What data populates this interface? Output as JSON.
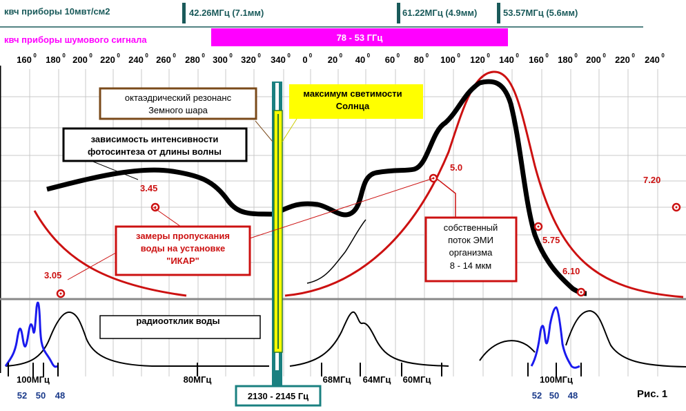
{
  "figure_label": "Рис. 1",
  "header": {
    "kvch_10mw_label": "квч приборы 10мвт/см2",
    "freq_marks": [
      "42.26МГц (7.1мм)",
      "61.22МГц (4.9мм)",
      "53.57МГц (5.6мм)"
    ],
    "noise_label": "квч приборы шумового сигнала",
    "band_label": "78 - 53 ГГц"
  },
  "colors": {
    "header_text": "#1a5a5a",
    "magenta": "#ff00ff",
    "red": "#cc1111",
    "blue": "#1a1aee",
    "teal": "#1a8080",
    "yellow": "#ffff00",
    "brown": "#7a4a1a",
    "grid": "#c8c8c8"
  },
  "angle_ticks": [
    "160",
    "180",
    "200",
    "220",
    "240",
    "260",
    "280",
    "300",
    "320",
    "340",
    "0",
    "20",
    "40",
    "60",
    "80",
    "100",
    "120",
    "140",
    "160",
    "180",
    "200",
    "220",
    "240"
  ],
  "degree_sign": "0",
  "annotations": {
    "resonance": [
      "октаэдрический резонанс",
      "Земного шара"
    ],
    "sun_max": [
      "максимум светимости",
      "Солнца"
    ],
    "photosynthesis": [
      "зависимость  интенсивности",
      "фотосинтеза от длины волны"
    ],
    "water_measure": [
      "замеры пропускания",
      "воды на установке",
      "\"ИКАР\""
    ],
    "emi": [
      "собственный",
      "поток ЭМИ",
      "организма",
      "8 - 14 мкм"
    ],
    "radio_response": "радиоотклик воды",
    "hz_band": "2130 - 2145 Гц"
  },
  "chart_data": {
    "type": "line",
    "title": "",
    "xlabel": "",
    "ylabel": "",
    "grid": true,
    "red_points": [
      {
        "label": "3.05",
        "value": 3.05
      },
      {
        "label": "3.45",
        "value": 3.45
      },
      {
        "label": "5.0",
        "value": 5.0
      },
      {
        "label": "5.75",
        "value": 5.75
      },
      {
        "label": "6.10",
        "value": 6.1
      },
      {
        "label": "7.20",
        "value": 7.2
      }
    ],
    "bottom_freq_labels": [
      "100МГц",
      "80МГц",
      "68МГц",
      "64МГц",
      "60МГц",
      "100МГц"
    ],
    "bottom_sub_labels": [
      "52",
      "50",
      "48",
      "52",
      "50",
      "48"
    ]
  }
}
